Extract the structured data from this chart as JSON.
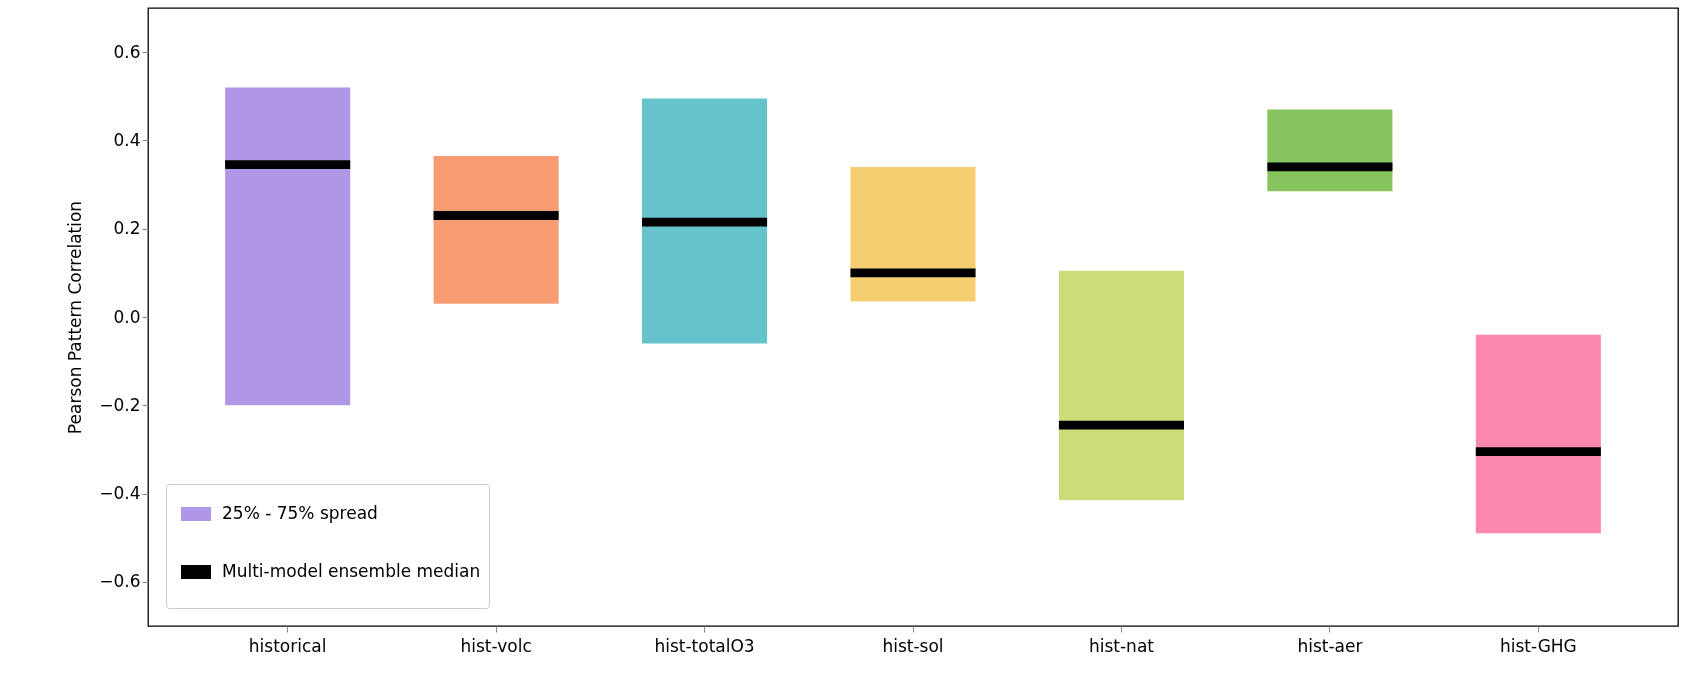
{
  "chart_data": {
    "type": "bar",
    "ylabel": "Pearson Pattern Correlation",
    "categories": [
      "historical",
      "hist-volc",
      "hist-totalO3",
      "hist-sol",
      "hist-nat",
      "hist-aer",
      "hist-GHG"
    ],
    "series": [
      {
        "name": "25% - 75% spread",
        "colors": [
          "#b096e6",
          "#f79c72",
          "#66c3cb",
          "#f5ce72",
          "#cbdc78",
          "#86c45e",
          "#fd88ae"
        ],
        "base": [
          -0.2,
          0.03,
          -0.06,
          0.035,
          -0.415,
          0.285,
          -0.49
        ],
        "values": [
          0.72,
          0.335,
          0.555,
          0.305,
          0.52,
          0.185,
          0.45
        ]
      },
      {
        "name": "Multi-model ensemble median",
        "color": "#000000",
        "base": [
          0.335,
          0.22,
          0.205,
          0.09,
          -0.255,
          0.33,
          -0.315
        ],
        "values": [
          0.02,
          0.02,
          0.02,
          0.02,
          0.02,
          0.02,
          0.02
        ]
      }
    ],
    "ylim": [
      -0.7,
      0.7
    ],
    "yticks": [
      {
        "value": -0.6,
        "label": "−0.6"
      },
      {
        "value": -0.4,
        "label": "−0.4"
      },
      {
        "value": -0.2,
        "label": "−0.2"
      },
      {
        "value": 0,
        "label": "0.0"
      },
      0.2,
      0.4,
      0.6
    ],
    "grid": false,
    "legend": "bottom left"
  }
}
